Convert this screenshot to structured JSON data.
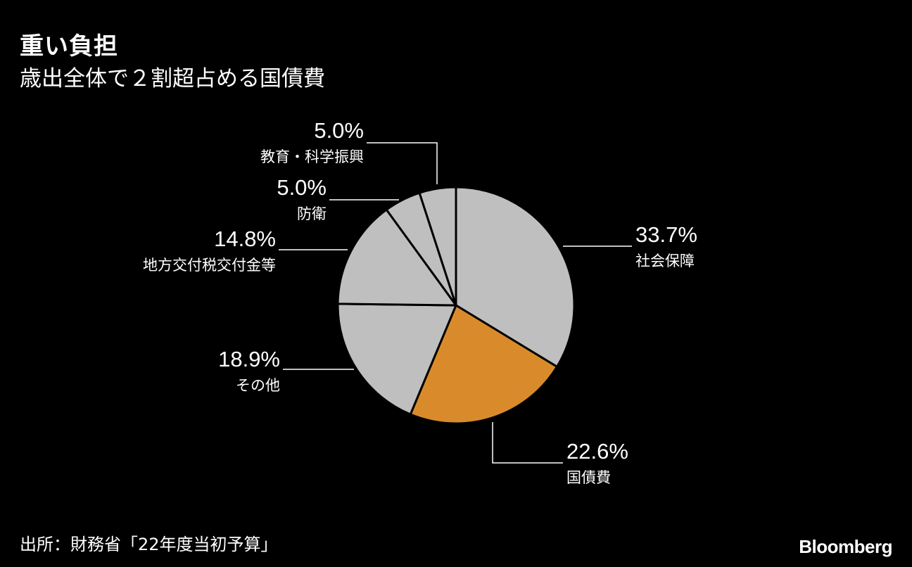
{
  "header": {
    "title": "重い負担",
    "subtitle": "歳出全体で２割超占める国債費"
  },
  "footer": {
    "source": "出所：財務省「22年度当初予算」",
    "brand": "Bloomberg"
  },
  "colors": {
    "background": "#000000",
    "slice_default": "#bfbfbf",
    "slice_highlight": "#d98b2b",
    "slice_border": "#000000",
    "text": "#ffffff",
    "leader": "#ffffff"
  },
  "chart_data": {
    "type": "pie",
    "title": "重い負担",
    "subtitle": "歳出全体で２割超占める国債費",
    "start": "12 o'clock",
    "direction": "clockwise",
    "slices": [
      {
        "label": "社会保障",
        "value": 33.7,
        "value_label": "33.7%",
        "highlight": false
      },
      {
        "label": "国債費",
        "value": 22.6,
        "value_label": "22.6%",
        "highlight": true
      },
      {
        "label": "その他",
        "value": 18.9,
        "value_label": "18.9%",
        "highlight": false
      },
      {
        "label": "地方交付税交付金等",
        "value": 14.8,
        "value_label": "14.8%",
        "highlight": false
      },
      {
        "label": "防衛",
        "value": 5.0,
        "value_label": "5.0%",
        "highlight": false
      },
      {
        "label": "教育・科学振興",
        "value": 5.0,
        "value_label": "5.0%",
        "highlight": false
      }
    ]
  }
}
